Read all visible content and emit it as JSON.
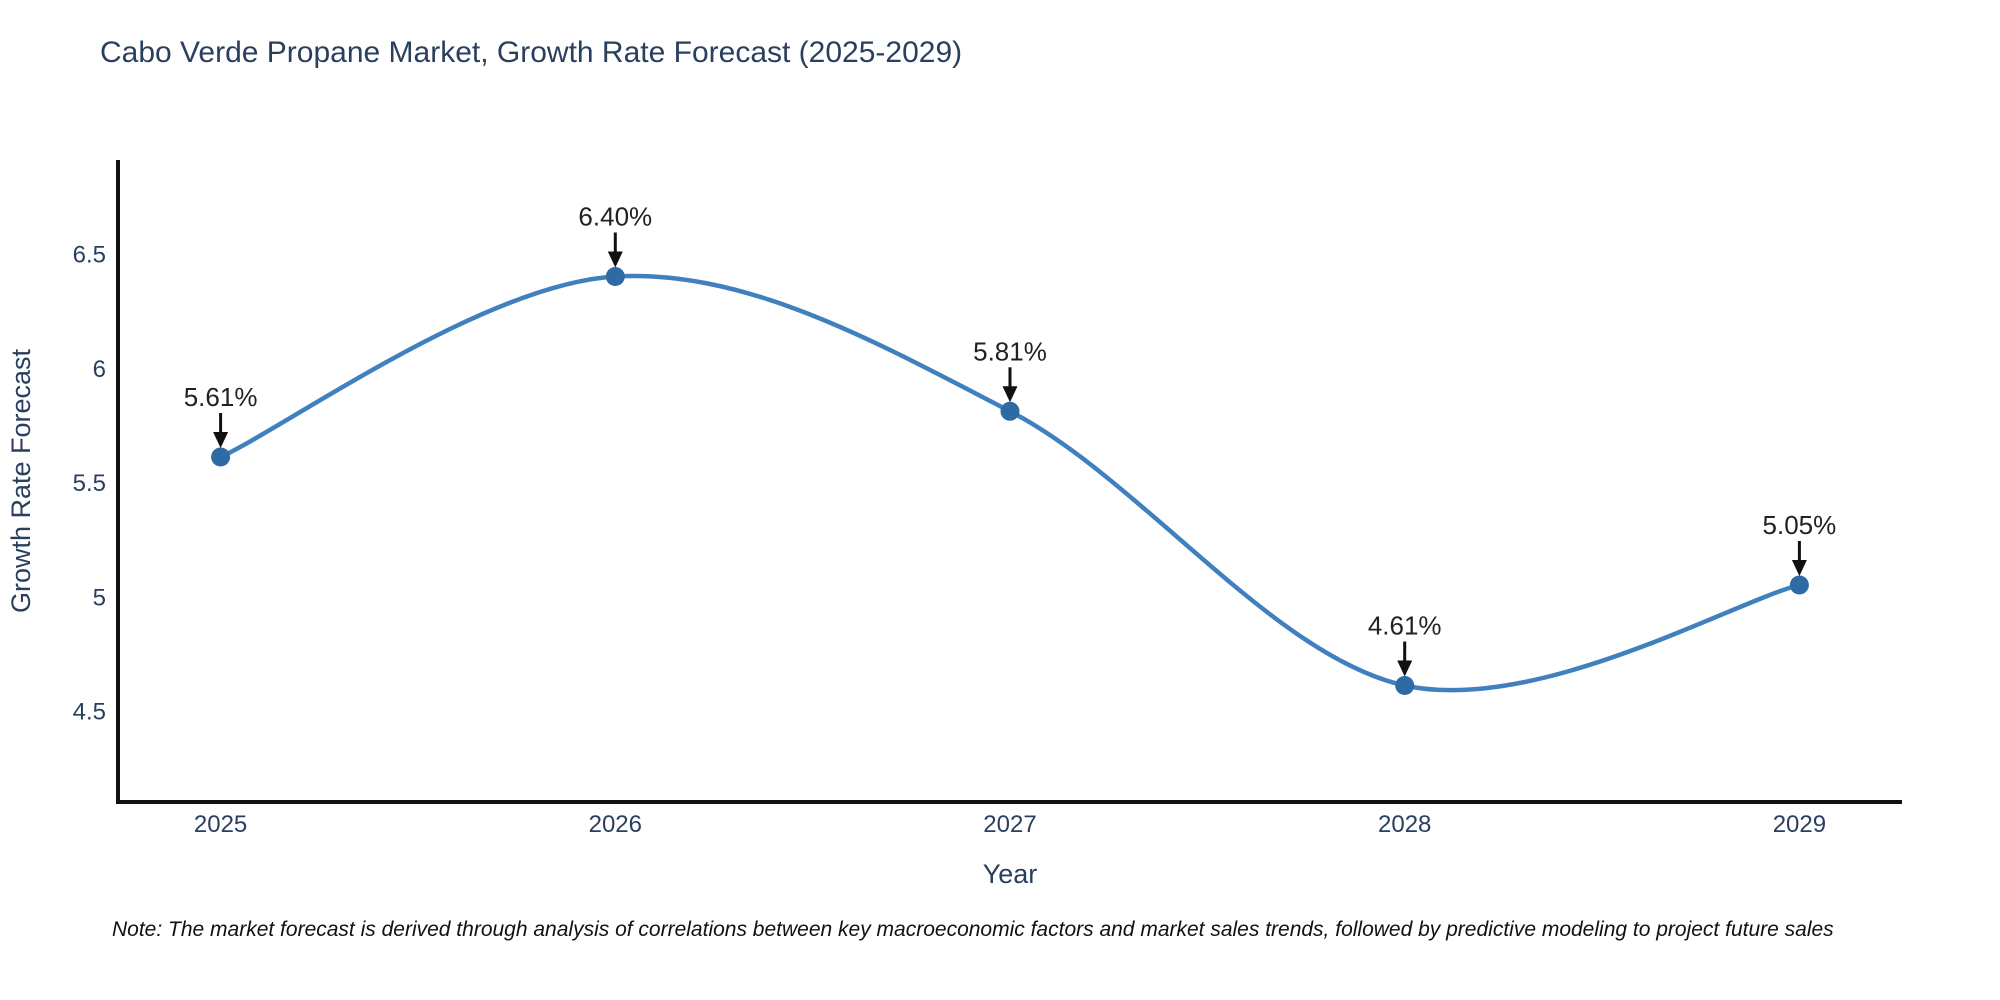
{
  "title": "Cabo Verde Propane Market, Growth Rate Forecast (2025-2029)",
  "note": "Note: The market forecast is derived through analysis of correlations between key macroeconomic factors and market sales trends, followed by predictive modeling to project future sales",
  "chart_data": {
    "type": "line",
    "title": "Cabo Verde Propane Market, Growth Rate Forecast (2025-2029)",
    "xlabel": "Year",
    "ylabel": "Growth Rate Forecast",
    "x": [
      2025,
      2026,
      2027,
      2028,
      2029
    ],
    "values": [
      5.61,
      6.4,
      5.81,
      4.61,
      5.05
    ],
    "point_labels": [
      "5.61%",
      "6.40%",
      "5.81%",
      "4.61%",
      "5.05%"
    ],
    "x_tick_labels": [
      "2025",
      "2026",
      "2027",
      "2028",
      "2029"
    ],
    "y_ticks": [
      4.5,
      5,
      5.5,
      6,
      6.5
    ],
    "y_tick_labels": [
      "4.5",
      "5",
      "5.5",
      "6",
      "6.5"
    ],
    "xlim": [
      2024.74,
      2029.26
    ],
    "ylim": [
      4.1,
      6.91
    ],
    "line_shape": "spline",
    "grid": false,
    "legend": "none",
    "colors": {
      "line": "#4080bf",
      "marker": "#2e6ba4",
      "axis": "#111111",
      "tick_text": "#2a3f5f",
      "annotation_text": "#222222",
      "arrow": "#111111",
      "background": "#ffffff"
    }
  }
}
